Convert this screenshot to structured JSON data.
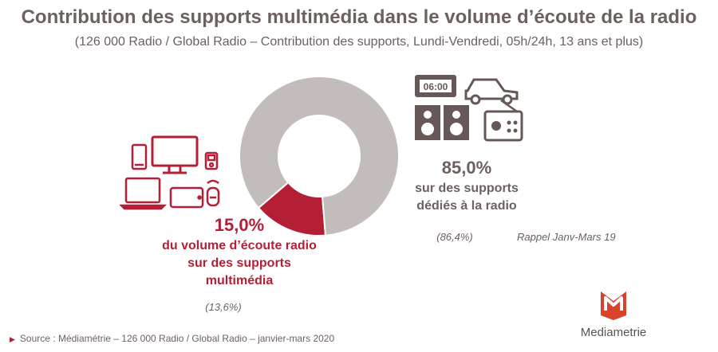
{
  "header": {
    "title": "Contribution des supports multimédia dans le volume d’écoute de la radio",
    "subtitle": "(126 000 Radio / Global Radio – Contribution des supports, Lundi-Vendredi, 05h/24h, 13 ans et plus)"
  },
  "chart_data": {
    "type": "pie",
    "title": "Contribution des supports multimédia dans le volume d’écoute de la radio",
    "slices": [
      {
        "label": "du volume d’écoute radio sur des supports multimédia",
        "value": 15.0,
        "color": "#b41f36"
      },
      {
        "label": "sur des supports dédiés à la radio",
        "value": 85.0,
        "color": "#c2bcbb"
      }
    ],
    "previous_values": [
      13.6,
      86.4
    ],
    "legend": "none"
  },
  "labels": {
    "multimedia_pct": "15,0%",
    "multimedia_line1": "du volume d’écoute radio",
    "multimedia_line2": "sur des supports",
    "multimedia_line3": "multimédia",
    "multimedia_prev": "(13,6%)",
    "dedicated_pct": "85,0%",
    "dedicated_line1": "sur des supports",
    "dedicated_line2": "dédiés à la radio",
    "dedicated_prev": "(86,4%)",
    "rappel": "Rappel Janv-Mars 19"
  },
  "icons": {
    "clock_display": "06:00",
    "left": [
      "smartphone-icon",
      "monitor-icon",
      "mp3-player-icon",
      "laptop-icon",
      "tablet-icon",
      "smart-speaker-icon"
    ],
    "right": [
      "radio-alarm-clock-icon",
      "car-icon",
      "hifi-speakers-icon",
      "portable-radio-icon"
    ]
  },
  "footer": {
    "source": "Source : Médiamétrie – 126 000 Radio / Global Radio – janvier-mars 2020",
    "logo_text": "Mediametrie"
  },
  "colors": {
    "accent": "#b41f36",
    "text": "#6d6160",
    "icon_right": "#665857",
    "donut_grey": "#c2bcbb"
  }
}
